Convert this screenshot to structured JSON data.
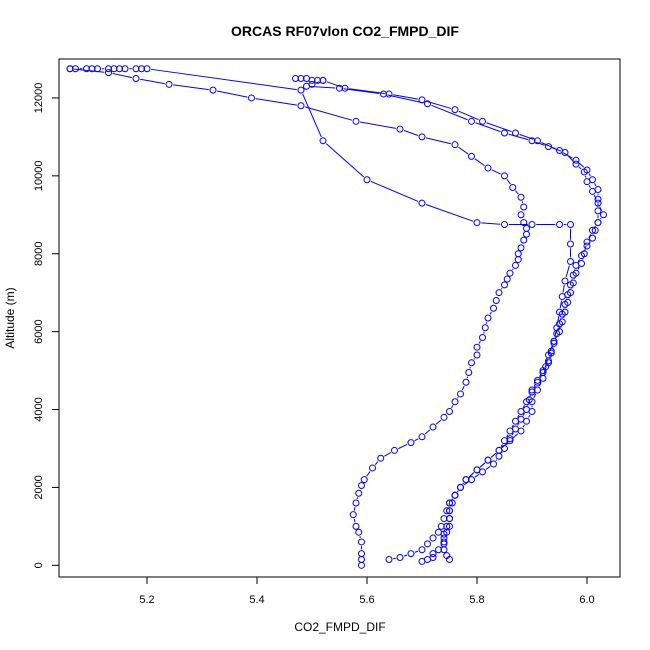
{
  "chart_data": {
    "type": "line",
    "title": "ORCAS RF07vlon CO2_FMPD_DIF",
    "xlabel": "CO2_FMPD_DIF",
    "ylabel": "Altitude (m)",
    "xlim": [
      5.04,
      6.06
    ],
    "ylim": [
      -300,
      13000
    ],
    "xticks": [
      5.2,
      5.4,
      5.6,
      5.8,
      6.0
    ],
    "xtick_labels": [
      "5.2",
      "5.4",
      "5.6",
      "5.8",
      "6.0"
    ],
    "yticks": [
      0,
      2000,
      4000,
      6000,
      8000,
      10000,
      12000
    ],
    "ytick_labels": [
      "0",
      "2000",
      "4000",
      "6000",
      "8000",
      "10000",
      "12000"
    ],
    "grid": false,
    "legend": "none",
    "marker": "open-circle",
    "color": "#0000ff",
    "series": [
      {
        "x": [
          5.59,
          5.59,
          5.59,
          5.59,
          5.585,
          5.58,
          5.575,
          5.58,
          5.585,
          5.59,
          5.595,
          5.61,
          5.625,
          5.65,
          5.68,
          5.7,
          5.72,
          5.74,
          5.75,
          5.76,
          5.77,
          5.78,
          5.785,
          5.79,
          5.8,
          5.8,
          5.81,
          5.815,
          5.82,
          5.83,
          5.835,
          5.84,
          5.85,
          5.855,
          5.86,
          5.87,
          5.875,
          5.875,
          5.88,
          5.885,
          5.89,
          5.89,
          5.885,
          5.88,
          5.885,
          5.88,
          5.865,
          5.85,
          5.82,
          5.79,
          5.76,
          5.7,
          5.66,
          5.58,
          5.48,
          5.39,
          5.32,
          5.24,
          5.18,
          5.13,
          5.06
        ],
        "y": [
          0,
          150,
          300,
          600,
          850,
          1000,
          1300,
          1600,
          1850,
          2050,
          2200,
          2500,
          2750,
          2950,
          3150,
          3300,
          3550,
          3800,
          3950,
          4200,
          4400,
          4700,
          4950,
          5200,
          5400,
          5600,
          5850,
          6100,
          6350,
          6600,
          6800,
          7000,
          7200,
          7350,
          7500,
          7700,
          7850,
          8000,
          8150,
          8350,
          8500,
          8650,
          8800,
          9000,
          9200,
          9450,
          9700,
          10000,
          10200,
          10500,
          10800,
          11000,
          11200,
          11400,
          11800,
          12000,
          12200,
          12350,
          12500,
          12650,
          12750
        ]
      },
      {
        "x": [
          5.06,
          5.07,
          5.09,
          5.1,
          5.11,
          5.13,
          5.14,
          5.15,
          5.16,
          5.18,
          5.19,
          5.2,
          5.48,
          5.52,
          5.6,
          5.7,
          5.8,
          5.85,
          5.9,
          5.95,
          5.97,
          5.97,
          5.97,
          5.96,
          5.955,
          5.95,
          5.945,
          5.94,
          5.93,
          5.925,
          5.92,
          5.91,
          5.9,
          5.9,
          5.89,
          5.88,
          5.86,
          5.84,
          5.82,
          5.8,
          5.78,
          5.77,
          5.76,
          5.75,
          5.745,
          5.74,
          5.735,
          5.73,
          5.72,
          5.71,
          5.7,
          5.68,
          5.66,
          5.64
        ],
        "y": [
          12750,
          12750,
          12750,
          12750,
          12750,
          12750,
          12750,
          12750,
          12750,
          12750,
          12750,
          12750,
          12200,
          10900,
          9900,
          9300,
          8800,
          8750,
          8750,
          8750,
          8750,
          8250,
          7800,
          7300,
          6900,
          6500,
          6100,
          5750,
          5400,
          5100,
          4800,
          4500,
          4200,
          3950,
          3700,
          3450,
          3200,
          2950,
          2700,
          2450,
          2200,
          2000,
          1800,
          1600,
          1400,
          1200,
          1000,
          850,
          700,
          550,
          400,
          300,
          200,
          150
        ]
      },
      {
        "x": [
          5.47,
          5.48,
          5.49,
          5.5,
          5.51,
          5.52,
          5.5,
          5.49,
          5.55,
          5.63,
          5.71,
          5.79,
          5.85,
          5.9,
          5.93,
          5.96,
          5.98,
          5.995,
          6.0,
          6.01,
          6.02,
          6.03,
          6.02,
          6.01,
          6.0,
          5.995,
          5.99,
          5.98,
          5.975,
          5.97,
          5.965,
          5.96,
          5.955,
          5.95,
          5.94,
          5.935,
          5.93,
          5.92,
          5.91,
          5.9,
          5.895,
          5.89,
          5.88,
          5.87,
          5.86,
          5.85,
          5.84,
          5.83,
          5.81,
          5.79,
          5.77,
          5.76,
          5.75,
          5.75,
          5.75,
          5.75,
          5.74,
          5.74,
          5.73,
          5.72,
          5.72,
          5.71,
          5.7
        ],
        "y": [
          12500,
          12500,
          12500,
          12450,
          12450,
          12450,
          12350,
          12300,
          12250,
          12100,
          11850,
          11400,
          11100,
          10900,
          10750,
          10600,
          10300,
          10100,
          9850,
          9600,
          9300,
          9000,
          8800,
          8600,
          8300,
          8000,
          7750,
          7500,
          7250,
          7000,
          6750,
          6500,
          6250,
          6000,
          5750,
          5500,
          5250,
          5000,
          4750,
          4500,
          4250,
          4000,
          3750,
          3500,
          3250,
          3000,
          2800,
          2600,
          2400,
          2200,
          2000,
          1800,
          1600,
          1400,
          1200,
          1000,
          800,
          600,
          400,
          300,
          200,
          150,
          100
        ]
      },
      {
        "x": [
          5.52,
          5.56,
          5.64,
          5.7,
          5.76,
          5.81,
          5.87,
          5.91,
          5.95,
          5.98,
          6.0,
          6.01,
          6.02,
          6.02,
          6.02,
          6.02,
          6.015,
          6.01,
          6.0,
          5.99,
          5.98,
          5.975,
          5.97,
          5.965,
          5.96,
          5.955,
          5.95,
          5.945,
          5.94,
          5.935,
          5.93,
          5.92,
          5.91,
          5.9,
          5.89,
          5.88,
          5.87,
          5.86,
          5.85,
          5.84,
          5.82,
          5.8,
          5.78,
          5.77,
          5.76,
          5.755,
          5.75,
          5.75,
          5.745,
          5.745,
          5.74,
          5.74,
          5.74,
          5.745,
          5.75
        ],
        "y": [
          12450,
          12250,
          12100,
          11950,
          11700,
          11400,
          11100,
          10900,
          10650,
          10400,
          10150,
          9900,
          9650,
          9400,
          9100,
          8800,
          8600,
          8400,
          8200,
          7950,
          7700,
          7450,
          7200,
          6950,
          6700,
          6450,
          6200,
          5950,
          5700,
          5450,
          5200,
          4950,
          4700,
          4450,
          4200,
          3950,
          3700,
          3450,
          3200,
          2950,
          2700,
          2450,
          2200,
          2000,
          1800,
          1600,
          1400,
          1200,
          1000,
          850,
          700,
          550,
          400,
          250,
          150
        ]
      }
    ]
  }
}
